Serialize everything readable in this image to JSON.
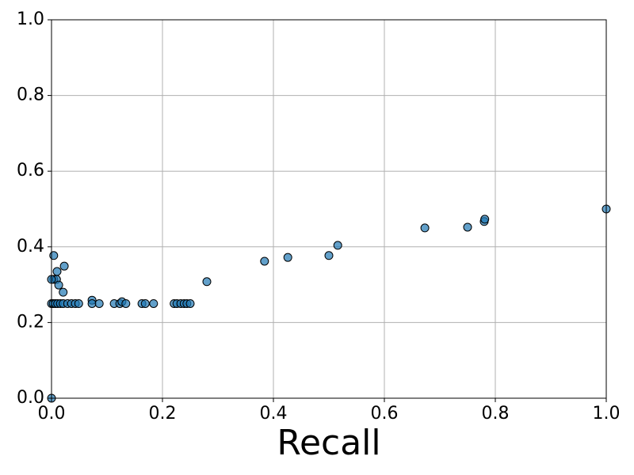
{
  "chart_data": {
    "type": "scatter",
    "x_label": "Recall",
    "x": [
      0,
      0,
      0.004,
      0.004,
      0.009,
      0.01,
      0.013,
      0.021,
      0.023,
      0,
      0.003,
      0.007,
      0.011,
      0.016,
      0.021,
      0.029,
      0.036,
      0.043,
      0.049,
      0.073,
      0.073,
      0.086,
      0.113,
      0.123,
      0.127,
      0.134,
      0.163,
      0.169,
      0.184,
      0.221,
      0.226,
      0.233,
      0.239,
      0.244,
      0.25,
      0.28,
      0.384,
      0.426,
      0.5,
      0.516,
      0.673,
      0.75,
      0.78,
      0.781,
      1.0
    ],
    "values": [
      0,
      0.25,
      0.377,
      0.314,
      0.314,
      0.335,
      0.299,
      0.28,
      0.349,
      0.314,
      0.25,
      0.25,
      0.25,
      0.25,
      0.25,
      0.25,
      0.25,
      0.25,
      0.25,
      0.259,
      0.25,
      0.25,
      0.25,
      0.25,
      0.255,
      0.25,
      0.25,
      0.25,
      0.25,
      0.25,
      0.25,
      0.25,
      0.25,
      0.25,
      0.25,
      0.308,
      0.362,
      0.372,
      0.377,
      0.404,
      0.45,
      0.452,
      0.467,
      0.473,
      0.5
    ],
    "color": "#1f77b4",
    "xlim": [
      0,
      1
    ],
    "ylim": [
      0,
      1
    ],
    "xticks": [
      {
        "value": 0,
        "label": "0.0"
      },
      0.2,
      0.4,
      0.6,
      0.8,
      {
        "value": 1,
        "label": "1.0"
      }
    ],
    "yticks": [
      {
        "value": 0,
        "label": "0.0"
      },
      0.2,
      0.4,
      0.6,
      0.8,
      {
        "value": 1,
        "label": "1.0"
      }
    ],
    "grid": true
  }
}
